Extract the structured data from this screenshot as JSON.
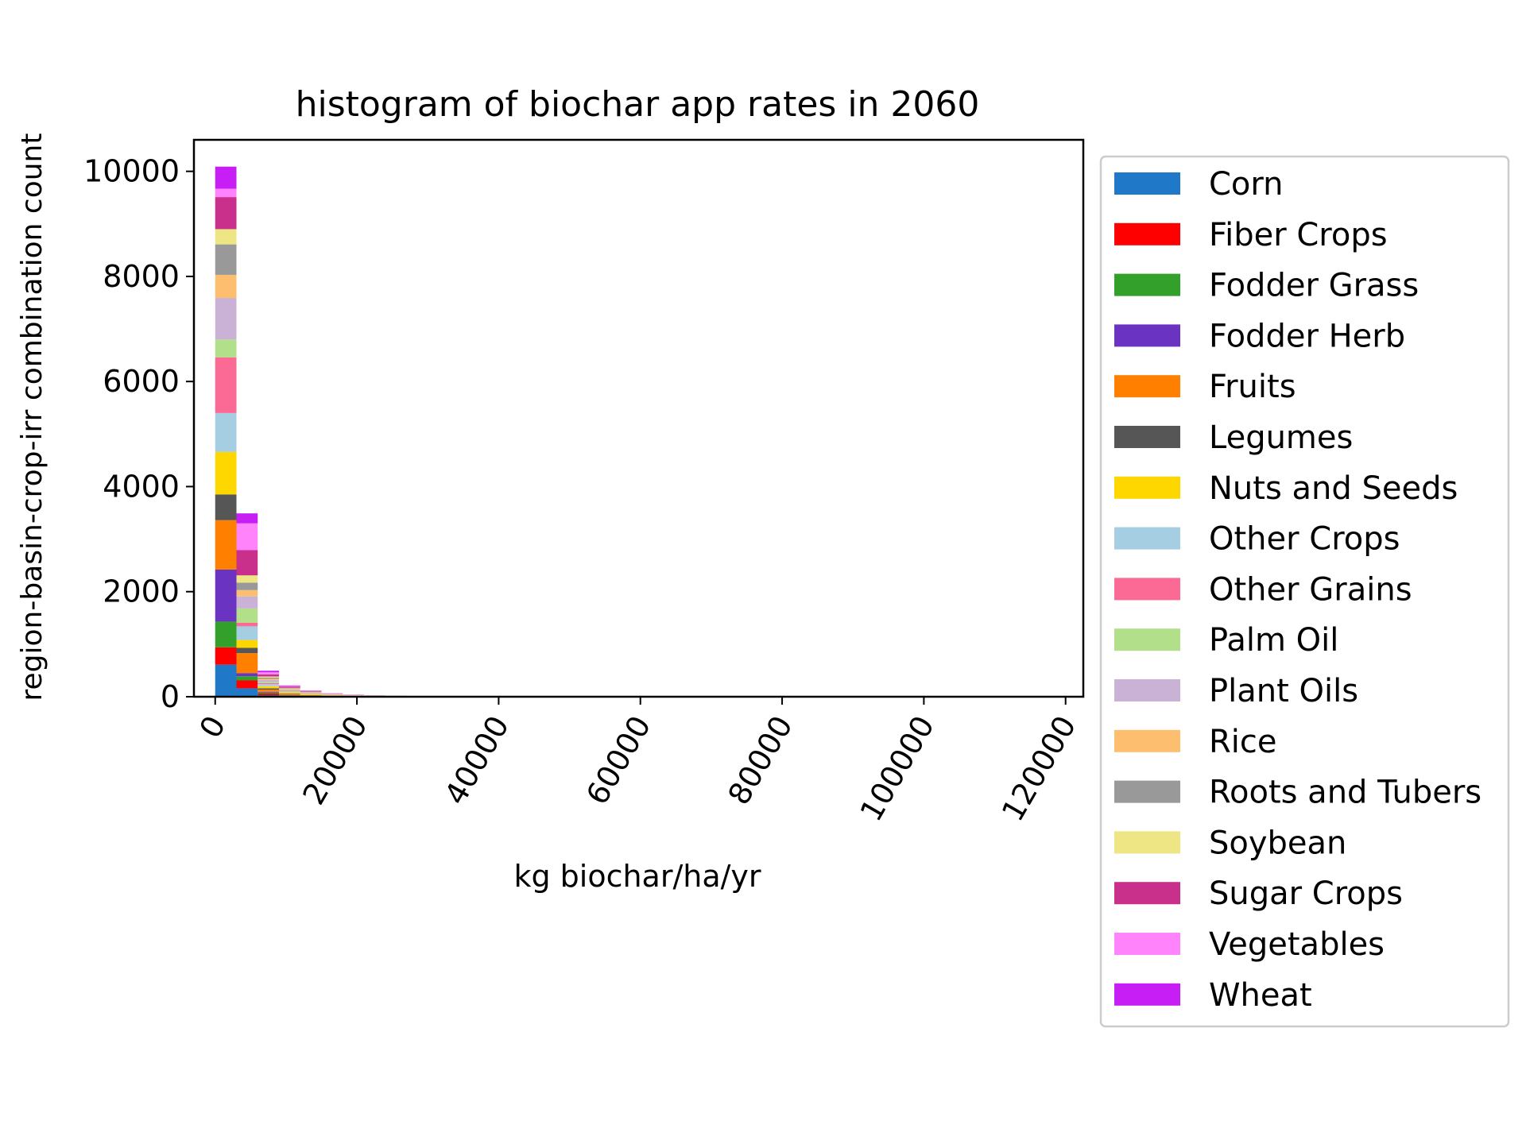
{
  "chart_data": {
    "type": "bar",
    "stacked": true,
    "title": "histogram of biochar app rates in 2060",
    "xlabel": "kg biochar/ha/yr",
    "ylabel": "region-basin-crop-irr combination count",
    "xlim": [
      -3000,
      122500
    ],
    "ylim": [
      0,
      10600
    ],
    "xticks": [
      0,
      20000,
      40000,
      60000,
      80000,
      100000,
      120000
    ],
    "xtick_labels": [
      "0",
      "20000",
      "40000",
      "60000",
      "80000",
      "100000",
      "120000"
    ],
    "yticks": [
      0,
      2000,
      4000,
      6000,
      8000,
      10000
    ],
    "ytick_labels": [
      "0",
      "2000",
      "4000",
      "6000",
      "8000",
      "10000"
    ],
    "bin_width": 3000,
    "bin_starts": [
      0,
      3000,
      6000,
      9000,
      12000,
      15000,
      18000,
      21000,
      24000,
      27000
    ],
    "grid": false,
    "legend_position": "outside-right",
    "series": [
      {
        "name": "Corn",
        "color": "#1f78c8",
        "values": [
          610,
          160,
          30,
          10,
          5,
          3,
          2,
          1,
          1,
          0
        ]
      },
      {
        "name": "Fiber Crops",
        "color": "#ff0000",
        "values": [
          330,
          150,
          30,
          10,
          5,
          3,
          2,
          1,
          1,
          0
        ]
      },
      {
        "name": "Fodder Grass",
        "color": "#33a02c",
        "values": [
          490,
          80,
          20,
          8,
          4,
          2,
          1,
          1,
          0,
          0
        ]
      },
      {
        "name": "Fodder Herb",
        "color": "#6a33c2",
        "values": [
          990,
          60,
          15,
          6,
          3,
          2,
          1,
          1,
          0,
          0
        ]
      },
      {
        "name": "Fruits",
        "color": "#ff7f00",
        "values": [
          940,
          380,
          40,
          20,
          10,
          6,
          4,
          3,
          2,
          1
        ]
      },
      {
        "name": "Legumes",
        "color": "#565656",
        "values": [
          490,
          100,
          25,
          10,
          6,
          3,
          2,
          1,
          1,
          0
        ]
      },
      {
        "name": "Nuts and Seeds",
        "color": "#ffd700",
        "values": [
          810,
          150,
          40,
          25,
          20,
          10,
          5,
          3,
          2,
          1
        ]
      },
      {
        "name": "Other Crops",
        "color": "#a6cee3",
        "values": [
          740,
          260,
          40,
          15,
          8,
          4,
          2,
          1,
          1,
          0
        ]
      },
      {
        "name": "Other Grains",
        "color": "#fb6a95",
        "values": [
          1060,
          70,
          20,
          10,
          5,
          3,
          2,
          1,
          1,
          0
        ]
      },
      {
        "name": "Palm Oil",
        "color": "#b2df8a",
        "values": [
          340,
          270,
          20,
          10,
          5,
          2,
          1,
          1,
          0,
          0
        ]
      },
      {
        "name": "Plant Oils",
        "color": "#cab2d6",
        "values": [
          790,
          230,
          40,
          15,
          10,
          5,
          3,
          2,
          1,
          0
        ]
      },
      {
        "name": "Rice",
        "color": "#fdbf6f",
        "values": [
          440,
          120,
          20,
          10,
          5,
          3,
          2,
          1,
          1,
          0
        ]
      },
      {
        "name": "Roots and Tubers",
        "color": "#999999",
        "values": [
          580,
          140,
          25,
          10,
          5,
          3,
          2,
          1,
          1,
          0
        ]
      },
      {
        "name": "Soybean",
        "color": "#eee685",
        "values": [
          290,
          140,
          20,
          10,
          5,
          3,
          2,
          1,
          0,
          0
        ]
      },
      {
        "name": "Sugar Crops",
        "color": "#c8308c",
        "values": [
          610,
          480,
          40,
          20,
          10,
          6,
          4,
          3,
          2,
          1
        ]
      },
      {
        "name": "Vegetables",
        "color": "#ff83fa",
        "values": [
          160,
          510,
          40,
          15,
          8,
          5,
          3,
          2,
          1,
          1
        ]
      },
      {
        "name": "Wheat",
        "color": "#c71ef5",
        "values": [
          420,
          190,
          30,
          10,
          5,
          3,
          2,
          1,
          1,
          0
        ]
      }
    ]
  }
}
